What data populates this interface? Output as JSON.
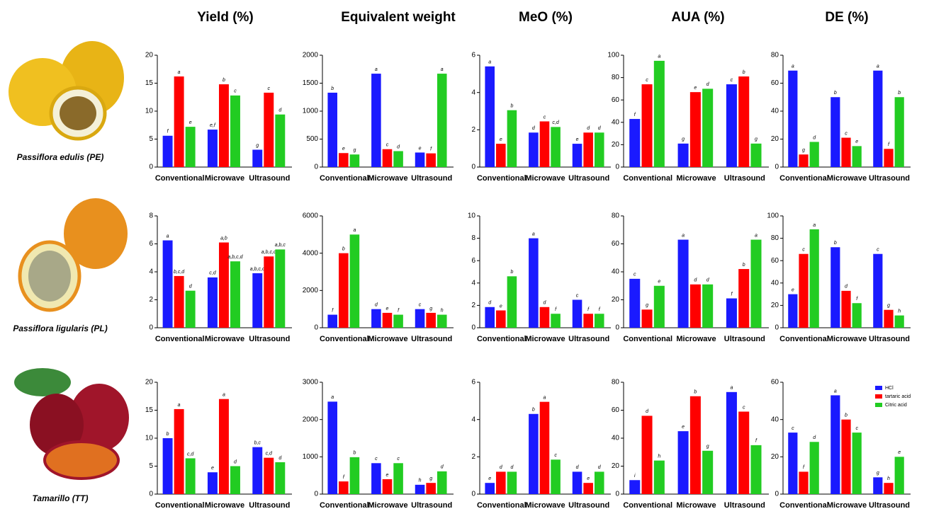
{
  "column_titles": [
    "Yield (%)",
    "Equivalent weight",
    "MeO (%)",
    "AUA (%)",
    "DE (%)"
  ],
  "row_labels": [
    "Passiflora edulis (PE)",
    "Passiflora ligularis (PL)",
    "Tamarillo (TT)"
  ],
  "chart_data": [
    {
      "type": "bar",
      "categories": [
        "Conventional",
        "Microwave",
        "Ultrasound"
      ],
      "ylim": [
        0,
        20
      ],
      "yticks": [
        0,
        5,
        10,
        15,
        20
      ],
      "series": [
        {
          "name": "HCl",
          "color": "#1a1aff",
          "values": [
            5.6,
            6.7,
            3.1
          ],
          "letters": [
            "f",
            "e,f",
            "g"
          ]
        },
        {
          "name": "tartaric acid",
          "color": "#ff0000",
          "values": [
            16.2,
            14.8,
            13.3
          ],
          "letters": [
            "a",
            "b",
            "c"
          ]
        },
        {
          "name": "Citric acid",
          "color": "#22cc22",
          "values": [
            7.2,
            12.8,
            9.4
          ],
          "letters": [
            "e",
            "c",
            "d"
          ]
        }
      ]
    },
    {
      "type": "bar",
      "categories": [
        "Conventional",
        "Microwave",
        "Ultrasound"
      ],
      "ylim": [
        0,
        2000
      ],
      "yticks": [
        0,
        500,
        1000,
        1500,
        2000
      ],
      "series": [
        {
          "name": "HCl",
          "color": "#1a1aff",
          "values": [
            1330,
            1670,
            260
          ],
          "letters": [
            "b",
            "a",
            "e"
          ]
        },
        {
          "name": "tartaric acid",
          "color": "#ff0000",
          "values": [
            250,
            320,
            245
          ],
          "letters": [
            "e",
            "c",
            "f"
          ]
        },
        {
          "name": "Citric acid",
          "color": "#22cc22",
          "values": [
            225,
            285,
            1670
          ],
          "letters": [
            "g",
            "d",
            "a"
          ]
        }
      ]
    },
    {
      "type": "bar",
      "categories": [
        "Conventional",
        "Microwave",
        "Ultrasound"
      ],
      "ylim": [
        0,
        6
      ],
      "yticks": [
        0,
        2,
        4,
        6
      ],
      "series": [
        {
          "name": "HCl",
          "color": "#1a1aff",
          "values": [
            5.4,
            1.85,
            1.25
          ],
          "letters": [
            "a",
            "d",
            "e"
          ]
        },
        {
          "name": "tartaric acid",
          "color": "#ff0000",
          "values": [
            1.25,
            2.45,
            1.85
          ],
          "letters": [
            "e",
            "c",
            "d"
          ]
        },
        {
          "name": "Citric acid",
          "color": "#22cc22",
          "values": [
            3.05,
            2.15,
            1.85
          ],
          "letters": [
            "b",
            "c,d",
            "d"
          ]
        }
      ]
    },
    {
      "type": "bar",
      "categories": [
        "Conventional",
        "Microwave",
        "Ultrasound"
      ],
      "ylim": [
        0,
        100
      ],
      "yticks": [
        0,
        20,
        40,
        60,
        80,
        100
      ],
      "series": [
        {
          "name": "HCl",
          "color": "#1a1aff",
          "values": [
            43,
            21,
            74
          ],
          "letters": [
            "f",
            "g",
            "c"
          ]
        },
        {
          "name": "tartaric acid",
          "color": "#ff0000",
          "values": [
            74,
            67,
            81
          ],
          "letters": [
            "c",
            "e",
            "b"
          ]
        },
        {
          "name": "Citric acid",
          "color": "#22cc22",
          "values": [
            95,
            70,
            21
          ],
          "letters": [
            "a",
            "d",
            "g"
          ]
        }
      ]
    },
    {
      "type": "bar",
      "categories": [
        "Conventional",
        "Microwave",
        "Ultrasound"
      ],
      "ylim": [
        0,
        80
      ],
      "yticks": [
        0,
        20,
        40,
        60,
        80
      ],
      "series": [
        {
          "name": "HCl",
          "color": "#1a1aff",
          "values": [
            69,
            50,
            69
          ],
          "letters": [
            "a",
            "b",
            "a"
          ]
        },
        {
          "name": "tartaric acid",
          "color": "#ff0000",
          "values": [
            9,
            21,
            13
          ],
          "letters": [
            "g",
            "c",
            "f"
          ]
        },
        {
          "name": "Citric acid",
          "color": "#22cc22",
          "values": [
            18,
            15,
            50
          ],
          "letters": [
            "d",
            "e",
            "b"
          ]
        }
      ]
    },
    {
      "type": "bar",
      "categories": [
        "Conventional",
        "Microwave",
        "Ultrasound"
      ],
      "ylim": [
        0,
        8
      ],
      "yticks": [
        0,
        2,
        4,
        6,
        8
      ],
      "series": [
        {
          "name": "HCl",
          "color": "#1a1aff",
          "values": [
            6.25,
            3.6,
            3.9
          ],
          "letters": [
            "a",
            "c,d",
            "a,b,c,d"
          ]
        },
        {
          "name": "tartaric acid",
          "color": "#ff0000",
          "values": [
            3.7,
            6.1,
            5.1
          ],
          "letters": [
            "b,c,d",
            "a,b",
            "a,b,c,d"
          ]
        },
        {
          "name": "Citric acid",
          "color": "#22cc22",
          "values": [
            2.65,
            4.75,
            5.6
          ],
          "letters": [
            "d",
            "a,b,c,d",
            "a,b,c"
          ]
        }
      ]
    },
    {
      "type": "bar",
      "categories": [
        "Conventional",
        "Microwave",
        "Ultrasound"
      ],
      "ylim": [
        0,
        6000
      ],
      "yticks": [
        0,
        2000,
        4000,
        6000
      ],
      "series": [
        {
          "name": "HCl",
          "color": "#1a1aff",
          "values": [
            700,
            1000,
            1000
          ],
          "letters": [
            "f",
            "d",
            "c"
          ]
        },
        {
          "name": "tartaric acid",
          "color": "#ff0000",
          "values": [
            4000,
            800,
            800
          ],
          "letters": [
            "b",
            "e",
            "g"
          ]
        },
        {
          "name": "Citric acid",
          "color": "#22cc22",
          "values": [
            5000,
            700,
            700
          ],
          "letters": [
            "a",
            "f",
            "h"
          ]
        }
      ]
    },
    {
      "type": "bar",
      "categories": [
        "Conventional",
        "Microwave",
        "Ultrasound"
      ],
      "ylim": [
        0,
        10
      ],
      "yticks": [
        0,
        2,
        4,
        6,
        8,
        10
      ],
      "series": [
        {
          "name": "HCl",
          "color": "#1a1aff",
          "values": [
            1.85,
            8.0,
            2.5
          ],
          "letters": [
            "d",
            "a",
            "c"
          ]
        },
        {
          "name": "tartaric acid",
          "color": "#ff0000",
          "values": [
            1.55,
            1.85,
            1.25
          ],
          "letters": [
            "e",
            "d",
            "f"
          ]
        },
        {
          "name": "Citric acid",
          "color": "#22cc22",
          "values": [
            4.6,
            1.25,
            1.25
          ],
          "letters": [
            "b",
            "f",
            "f"
          ]
        }
      ]
    },
    {
      "type": "bar",
      "categories": [
        "Conventional",
        "Microwave",
        "Ultrasound"
      ],
      "ylim": [
        0,
        80
      ],
      "yticks": [
        0,
        20,
        40,
        60,
        80
      ],
      "series": [
        {
          "name": "HCl",
          "color": "#1a1aff",
          "values": [
            35,
            63,
            21
          ],
          "letters": [
            "c",
            "a",
            "f"
          ]
        },
        {
          "name": "tartaric acid",
          "color": "#ff0000",
          "values": [
            13,
            31,
            42
          ],
          "letters": [
            "g",
            "d",
            "b"
          ]
        },
        {
          "name": "Citric acid",
          "color": "#22cc22",
          "values": [
            30,
            31,
            63
          ],
          "letters": [
            "e",
            "d",
            "a"
          ]
        }
      ]
    },
    {
      "type": "bar",
      "categories": [
        "Conventional",
        "Microwave",
        "Ultrasound"
      ],
      "ylim": [
        0,
        100
      ],
      "yticks": [
        0,
        20,
        40,
        60,
        80,
        100
      ],
      "series": [
        {
          "name": "HCl",
          "color": "#1a1aff",
          "values": [
            30,
            72,
            66
          ],
          "letters": [
            "e",
            "b",
            "c"
          ]
        },
        {
          "name": "tartaric acid",
          "color": "#ff0000",
          "values": [
            66,
            33,
            16
          ],
          "letters": [
            "c",
            "d",
            "g"
          ]
        },
        {
          "name": "Citric acid",
          "color": "#22cc22",
          "values": [
            88,
            22,
            11
          ],
          "letters": [
            "a",
            "f",
            "h"
          ]
        }
      ]
    },
    {
      "type": "bar",
      "categories": [
        "Conventional",
        "Microwave",
        "Ultrasound"
      ],
      "ylim": [
        0,
        20
      ],
      "yticks": [
        0,
        5,
        10,
        15,
        20
      ],
      "series": [
        {
          "name": "HCl",
          "color": "#1a1aff",
          "values": [
            10,
            3.9,
            8.4
          ],
          "letters": [
            "b",
            "e",
            "b,c"
          ]
        },
        {
          "name": "tartaric acid",
          "color": "#ff0000",
          "values": [
            15.2,
            17.0,
            6.5
          ],
          "letters": [
            "a",
            "a",
            "c,d"
          ]
        },
        {
          "name": "Citric acid",
          "color": "#22cc22",
          "values": [
            6.4,
            5.0,
            5.7
          ],
          "letters": [
            "c,d",
            "d",
            "d"
          ]
        }
      ]
    },
    {
      "type": "bar",
      "categories": [
        "Conventional",
        "Microwave",
        "Ultrasound"
      ],
      "ylim": [
        0,
        3000
      ],
      "yticks": [
        0,
        1000,
        2000,
        3000
      ],
      "series": [
        {
          "name": "HCl",
          "color": "#1a1aff",
          "values": [
            2480,
            830,
            250
          ],
          "letters": [
            "a",
            "c",
            "h"
          ]
        },
        {
          "name": "tartaric acid",
          "color": "#ff0000",
          "values": [
            340,
            400,
            300
          ],
          "letters": [
            "f",
            "e",
            "g"
          ]
        },
        {
          "name": "Citric acid",
          "color": "#22cc22",
          "values": [
            990,
            830,
            610
          ],
          "letters": [
            "b",
            "c",
            "d"
          ]
        }
      ]
    },
    {
      "type": "bar",
      "categories": [
        "Conventional",
        "Microwave",
        "Ultrasound"
      ],
      "ylim": [
        0,
        6
      ],
      "yticks": [
        0,
        2,
        4,
        6
      ],
      "series": [
        {
          "name": "HCl",
          "color": "#1a1aff",
          "values": [
            0.6,
            4.3,
            1.2
          ],
          "letters": [
            "e",
            "b",
            "d"
          ]
        },
        {
          "name": "tartaric acid",
          "color": "#ff0000",
          "values": [
            1.2,
            4.95,
            0.6
          ],
          "letters": [
            "d",
            "a",
            "e"
          ]
        },
        {
          "name": "Citric acid",
          "color": "#22cc22",
          "values": [
            1.2,
            1.85,
            1.2
          ],
          "letters": [
            "d",
            "c",
            "d"
          ]
        }
      ]
    },
    {
      "type": "bar",
      "categories": [
        "Conventional",
        "Microwave",
        "Ultrasound"
      ],
      "ylim": [
        0,
        80
      ],
      "yticks": [
        0,
        20,
        40,
        60,
        80
      ],
      "series": [
        {
          "name": "HCl",
          "color": "#1a1aff",
          "values": [
            10,
            45,
            73
          ],
          "letters": [
            "i",
            "e",
            "a"
          ]
        },
        {
          "name": "tartaric acid",
          "color": "#ff0000",
          "values": [
            56,
            70,
            59
          ],
          "letters": [
            "d",
            "b",
            "c"
          ]
        },
        {
          "name": "Citric acid",
          "color": "#22cc22",
          "values": [
            24,
            31,
            35
          ],
          "letters": [
            "h",
            "g",
            "f"
          ]
        }
      ]
    },
    {
      "type": "bar",
      "categories": [
        "Conventional",
        "Microwave",
        "Ultrasound"
      ],
      "ylim": [
        0,
        60
      ],
      "yticks": [
        0,
        20,
        40,
        60
      ],
      "legend": "upper right",
      "series": [
        {
          "name": "HCl",
          "color": "#1a1aff",
          "values": [
            33,
            53,
            9
          ],
          "letters": [
            "c",
            "a",
            "g"
          ]
        },
        {
          "name": "tartaric acid",
          "color": "#ff0000",
          "values": [
            12,
            40,
            6
          ],
          "letters": [
            "f",
            "b",
            "h"
          ]
        },
        {
          "name": "Citric acid",
          "color": "#22cc22",
          "values": [
            28,
            33,
            20
          ],
          "letters": [
            "d",
            "c",
            "e"
          ]
        }
      ]
    }
  ]
}
